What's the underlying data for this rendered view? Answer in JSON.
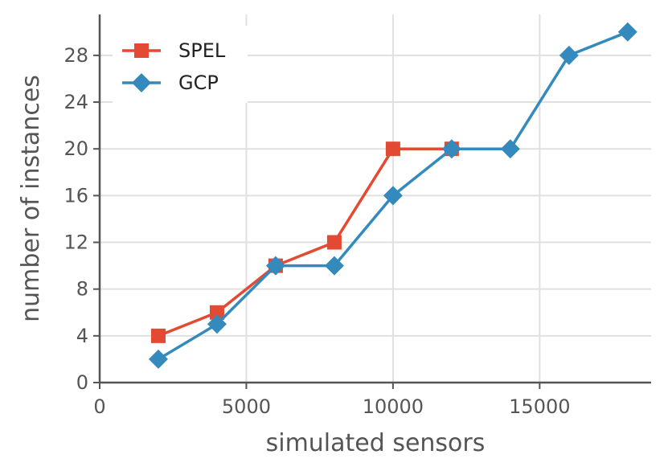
{
  "chart_data": {
    "type": "line",
    "xlabel": "simulated sensors",
    "ylabel": "number of instances",
    "xlim": [
      0,
      18800
    ],
    "ylim": [
      0,
      31.5
    ],
    "x_ticks": [
      0,
      5000,
      10000,
      15000
    ],
    "y_ticks": [
      0,
      4,
      8,
      12,
      16,
      20,
      24,
      28
    ],
    "grid": true,
    "legend_position": "top-left",
    "series": [
      {
        "name": "SPEL",
        "color": "#E24A33",
        "marker": "square",
        "x": [
          2000,
          4000,
          6000,
          8000,
          10000,
          12000
        ],
        "y": [
          4,
          6,
          10,
          12,
          20,
          20
        ]
      },
      {
        "name": "GCP",
        "color": "#348ABD",
        "marker": "diamond",
        "x": [
          2000,
          4000,
          6000,
          8000,
          10000,
          12000,
          14000,
          16000,
          18000
        ],
        "y": [
          2,
          5,
          10,
          10,
          16,
          20,
          20,
          28,
          30
        ]
      }
    ]
  }
}
